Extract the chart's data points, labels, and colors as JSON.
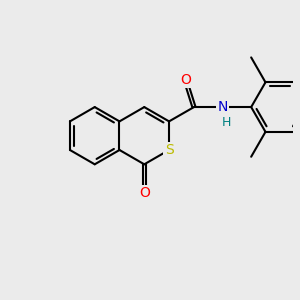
{
  "bg_color": "#ebebeb",
  "bond_color": "#000000",
  "bond_width": 1.5,
  "atom_colors": {
    "O": "#ff0000",
    "S": "#bbbb00",
    "N": "#0000cc",
    "H": "#008080",
    "C": "#000000"
  },
  "font_size": 10
}
